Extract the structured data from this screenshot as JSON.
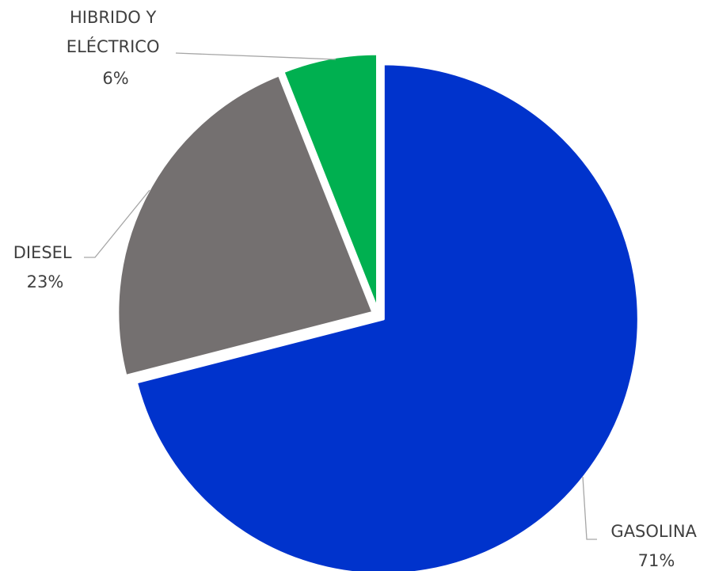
{
  "chart_data": {
    "type": "pie",
    "title": "",
    "categories": [
      "GASOLINA",
      "DIESEL",
      "HIBRIDO Y ELÉCTRICO"
    ],
    "values": [
      71,
      23,
      6
    ],
    "value_labels": [
      "71%",
      "23%",
      "6%"
    ],
    "colors": [
      "#0033cc",
      "#747070",
      "#00b050"
    ],
    "legend": "none",
    "label_lines": {
      "gasolina": [
        "GASOLINA"
      ],
      "diesel": [
        "DIESEL"
      ],
      "hibrido": [
        "HIBRIDO Y",
        "ELÉCTRICO"
      ]
    }
  }
}
